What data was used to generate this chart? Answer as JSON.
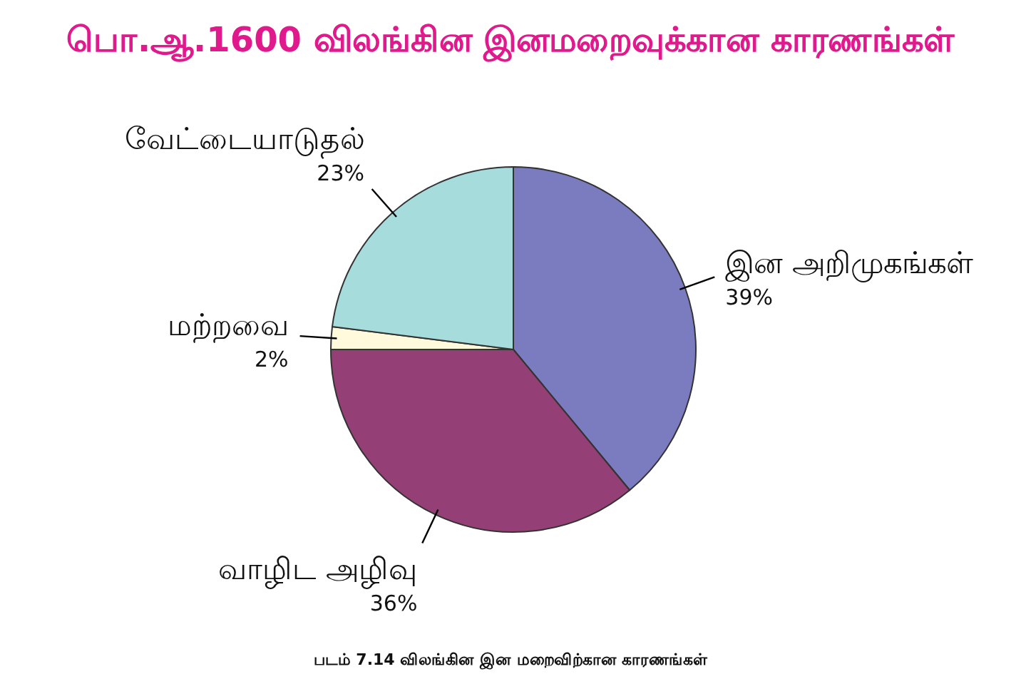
{
  "chart_data": {
    "type": "pie",
    "title": "பொ.ஆ.1600 விலங்கின இனமறைவுக்கான காரணங்கள்",
    "categories": [
      "இன அறிமுகங்கள்",
      "வாழிட அழிவு",
      "மற்றவை",
      "வேட்டையாடுதல்"
    ],
    "values": [
      39,
      36,
      2,
      23
    ],
    "value_labels": [
      "39%",
      "36%",
      "2%",
      "23%"
    ],
    "colors": [
      "#7b7bbf",
      "#943f76",
      "#fffadc",
      "#a6dcdc"
    ],
    "annotations": [
      "படம் 7.14 விலங்கின இன மறைவிற்கான காரணங்கள்"
    ]
  }
}
